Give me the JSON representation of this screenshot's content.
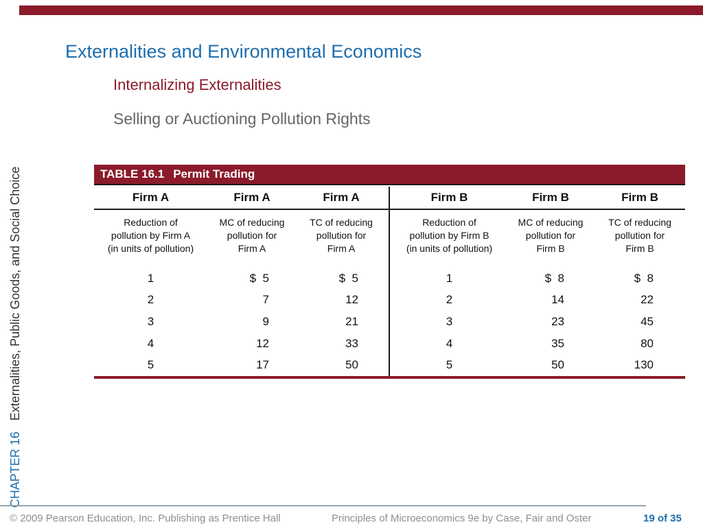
{
  "page": {
    "title": "Externalities and Environmental Economics",
    "subtitle": "Internalizing Externalities",
    "topic": "Selling or Auctioning Pollution Rights"
  },
  "sidebar": {
    "chapter_label": "CHAPTER 16",
    "chapter_name": "Externalities, Public Goods, and Social Choice"
  },
  "table": {
    "label": "TABLE 16.1",
    "title": "Permit Trading",
    "group_headers": [
      "Firm A",
      "Firm A",
      "Firm A",
      "Firm B",
      "Firm B",
      "Firm B"
    ],
    "column_headers": [
      [
        "Reduction of",
        "pollution by Firm A",
        "(in units of pollution)"
      ],
      [
        "MC of reducing",
        "pollution for",
        "Firm A"
      ],
      [
        "TC of reducing",
        "pollution for",
        "Firm A"
      ],
      [
        "Reduction of",
        "pollution by Firm B",
        "(in units of pollution)"
      ],
      [
        "MC of reducing",
        "pollution for",
        "Firm B"
      ],
      [
        "TC of reducing",
        "pollution for",
        "Firm B"
      ]
    ],
    "rows": [
      [
        "1",
        "$  5",
        "$  5",
        "1",
        "$  8",
        "$  8"
      ],
      [
        "2",
        "7",
        "12",
        "2",
        "14",
        "22"
      ],
      [
        "3",
        "9",
        "21",
        "3",
        "23",
        "45"
      ],
      [
        "4",
        "12",
        "33",
        "4",
        "35",
        "80"
      ],
      [
        "5",
        "17",
        "50",
        "5",
        "50",
        "130"
      ]
    ]
  },
  "footer": {
    "copyright": "© 2009 Pearson Education, Inc. Publishing as Prentice Hall",
    "book": "Principles of Microeconomics 9e by Case, Fair and Oster",
    "page_number": "19 of 35"
  },
  "colors": {
    "accent_blue": "#1D6EAE",
    "maroon": "#8B1B2B",
    "subtitle_gray": "#656565",
    "footer_gray": "#8F8F8F"
  }
}
